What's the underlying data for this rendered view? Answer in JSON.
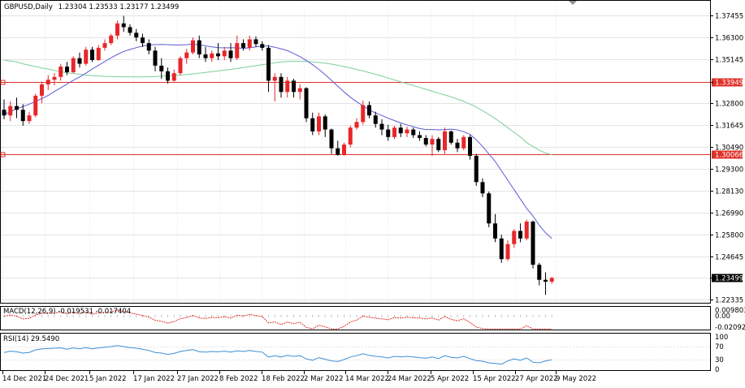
{
  "chart_data": {
    "type": "candlestick",
    "header": {
      "symbol_timeframe": "GBPUSD,Daily",
      "ohlc": "1.23304 1.23533 1.23177 1.23499"
    },
    "x_tick_labels": [
      "14 Dec 2021",
      "24 Dec 2021",
      "5 Jan 2022",
      "17 Jan 2022",
      "27 Jan 2022",
      "8 Feb 2022",
      "18 Feb 2022",
      "2 Mar 2022",
      "14 Mar 2022",
      "24 Mar 2022",
      "5 Apr 2022",
      "15 Apr 2022",
      "27 Apr 2022",
      "9 May 2022"
    ],
    "y_tick_labels": [
      "1.37455",
      "1.36300",
      "1.35145",
      "1.33949",
      "1.32800",
      "1.31645",
      "1.30490",
      "1.29300",
      "1.28130",
      "1.26990",
      "1.25800",
      "1.24645",
      "1.23499",
      "1.22335"
    ],
    "ylim": [
      1.2222,
      1.3795
    ],
    "horizontal_levels": [
      {
        "value": 1.33949,
        "label": "1.33949",
        "color": "#e0302a"
      },
      {
        "value": 1.30066,
        "label": "1.30066",
        "color": "#e0302a"
      }
    ],
    "current_price": {
      "value": 1.23499,
      "label": "1.23499"
    },
    "colors": {
      "bull": "#e8262a",
      "bear": "#000000",
      "ma_fast": "#5b5bd6",
      "ma_slow": "#7ccf98",
      "level": "#e0302a",
      "grid": "#c8c8c8"
    },
    "candles": [
      [
        1.3245,
        1.33,
        1.3195,
        1.3215
      ],
      [
        1.3215,
        1.329,
        1.3185,
        1.3265
      ],
      [
        1.3265,
        1.331,
        1.32,
        1.3245
      ],
      [
        1.3245,
        1.3275,
        1.316,
        1.3185
      ],
      [
        1.3185,
        1.3235,
        1.317,
        1.3215
      ],
      [
        1.3215,
        1.333,
        1.3205,
        1.332
      ],
      [
        1.332,
        1.3395,
        1.328,
        1.338
      ],
      [
        1.338,
        1.343,
        1.335,
        1.3405
      ],
      [
        1.3405,
        1.344,
        1.3375,
        1.342
      ],
      [
        1.342,
        1.349,
        1.34,
        1.3475
      ],
      [
        1.3475,
        1.35,
        1.343,
        1.3445
      ],
      [
        1.3445,
        1.353,
        1.344,
        1.352
      ],
      [
        1.352,
        1.355,
        1.347,
        1.349
      ],
      [
        1.349,
        1.358,
        1.348,
        1.3565
      ],
      [
        1.3565,
        1.358,
        1.35,
        1.351
      ],
      [
        1.351,
        1.359,
        1.3505,
        1.3575
      ],
      [
        1.3575,
        1.362,
        1.356,
        1.36
      ],
      [
        1.36,
        1.365,
        1.359,
        1.364
      ],
      [
        1.364,
        1.372,
        1.362,
        1.3705
      ],
      [
        1.3705,
        1.3745,
        1.366,
        1.3685
      ],
      [
        1.3685,
        1.37,
        1.364,
        1.3655
      ],
      [
        1.3655,
        1.3675,
        1.361,
        1.363
      ],
      [
        1.363,
        1.365,
        1.358,
        1.36
      ],
      [
        1.36,
        1.362,
        1.354,
        1.356
      ],
      [
        1.356,
        1.358,
        1.345,
        1.348
      ],
      [
        1.348,
        1.352,
        1.341,
        1.345
      ],
      [
        1.345,
        1.347,
        1.3385,
        1.34
      ],
      [
        1.34,
        1.346,
        1.3395,
        1.344
      ],
      [
        1.344,
        1.353,
        1.343,
        1.352
      ],
      [
        1.352,
        1.357,
        1.349,
        1.355
      ],
      [
        1.355,
        1.363,
        1.354,
        1.3615
      ],
      [
        1.3615,
        1.364,
        1.352,
        1.354
      ],
      [
        1.354,
        1.358,
        1.35,
        1.352
      ],
      [
        1.352,
        1.356,
        1.35,
        1.3545
      ],
      [
        1.3545,
        1.36,
        1.351,
        1.353
      ],
      [
        1.353,
        1.358,
        1.351,
        1.356
      ],
      [
        1.356,
        1.36,
        1.35,
        1.352
      ],
      [
        1.352,
        1.364,
        1.351,
        1.36
      ],
      [
        1.36,
        1.362,
        1.356,
        1.3575
      ],
      [
        1.3575,
        1.364,
        1.356,
        1.362
      ],
      [
        1.362,
        1.3635,
        1.358,
        1.3595
      ],
      [
        1.3595,
        1.361,
        1.356,
        1.3575
      ],
      [
        1.3575,
        1.359,
        1.334,
        1.34
      ],
      [
        1.34,
        1.344,
        1.329,
        1.342
      ],
      [
        1.342,
        1.344,
        1.331,
        1.334
      ],
      [
        1.334,
        1.342,
        1.331,
        1.34
      ],
      [
        1.34,
        1.341,
        1.331,
        1.334
      ],
      [
        1.334,
        1.338,
        1.33,
        1.336
      ],
      [
        1.336,
        1.3365,
        1.318,
        1.32
      ],
      [
        1.32,
        1.323,
        1.311,
        1.313
      ],
      [
        1.313,
        1.323,
        1.311,
        1.321
      ],
      [
        1.321,
        1.322,
        1.31,
        1.314
      ],
      [
        1.314,
        1.3145,
        1.301,
        1.304
      ],
      [
        1.304,
        1.308,
        1.3,
        1.3005
      ],
      [
        1.3005,
        1.307,
        1.3,
        1.306
      ],
      [
        1.306,
        1.316,
        1.3045,
        1.315
      ],
      [
        1.315,
        1.32,
        1.314,
        1.318
      ],
      [
        1.318,
        1.3295,
        1.3165,
        1.327
      ],
      [
        1.327,
        1.329,
        1.32,
        1.3215
      ],
      [
        1.3215,
        1.3235,
        1.315,
        1.317
      ],
      [
        1.317,
        1.3195,
        1.311,
        1.314
      ],
      [
        1.314,
        1.3165,
        1.308,
        1.31
      ],
      [
        1.31,
        1.316,
        1.309,
        1.315
      ],
      [
        1.315,
        1.317,
        1.31,
        1.312
      ],
      [
        1.312,
        1.3155,
        1.31,
        1.314
      ],
      [
        1.314,
        1.315,
        1.3095,
        1.311
      ],
      [
        1.311,
        1.313,
        1.308,
        1.3095
      ],
      [
        1.3095,
        1.311,
        1.305,
        1.306
      ],
      [
        1.306,
        1.311,
        1.3,
        1.309
      ],
      [
        1.309,
        1.31,
        1.302,
        1.303
      ],
      [
        1.303,
        1.315,
        1.301,
        1.313
      ],
      [
        1.313,
        1.3135,
        1.306,
        1.307
      ],
      [
        1.307,
        1.309,
        1.302,
        1.304
      ],
      [
        1.304,
        1.311,
        1.303,
        1.31
      ],
      [
        1.31,
        1.311,
        1.298,
        1.3
      ],
      [
        1.3,
        1.301,
        1.284,
        1.286
      ],
      [
        1.286,
        1.288,
        1.278,
        1.28
      ],
      [
        1.28,
        1.281,
        1.262,
        1.264
      ],
      [
        1.264,
        1.269,
        1.254,
        1.256
      ],
      [
        1.256,
        1.258,
        1.243,
        1.245
      ],
      [
        1.245,
        1.255,
        1.244,
        1.253
      ],
      [
        1.253,
        1.261,
        1.251,
        1.26
      ],
      [
        1.26,
        1.264,
        1.254,
        1.256
      ],
      [
        1.256,
        1.266,
        1.255,
        1.265
      ],
      [
        1.265,
        1.2655,
        1.24,
        1.242
      ],
      [
        1.242,
        1.243,
        1.231,
        1.234
      ],
      [
        1.234,
        1.238,
        1.226,
        1.233
      ],
      [
        1.233,
        1.2355,
        1.2318,
        1.235
      ]
    ],
    "ma_fast": [
      1.322,
      1.3235,
      1.325,
      1.3262,
      1.3275,
      1.329,
      1.3305,
      1.3322,
      1.3342,
      1.3362,
      1.3382,
      1.3402,
      1.342,
      1.344,
      1.3462,
      1.3482,
      1.3502,
      1.3522,
      1.354,
      1.3556,
      1.3566,
      1.3576,
      1.3584,
      1.359,
      1.3592,
      1.3593,
      1.3592,
      1.359,
      1.359,
      1.3592,
      1.3595,
      1.359,
      1.3586,
      1.358,
      1.3576,
      1.3575,
      1.3575,
      1.3575,
      1.3572,
      1.3575,
      1.358,
      1.3585,
      1.3585,
      1.3578,
      1.357,
      1.356,
      1.3545,
      1.3528,
      1.3508,
      1.3485,
      1.346,
      1.3432,
      1.3402,
      1.337,
      1.334,
      1.3312,
      1.3288,
      1.3266,
      1.3245,
      1.3228,
      1.3215,
      1.32,
      1.3188,
      1.3175,
      1.3165,
      1.3155,
      1.3145,
      1.314,
      1.314,
      1.3138,
      1.314,
      1.3142,
      1.3138,
      1.3128,
      1.3115,
      1.3085,
      1.305,
      1.301,
      1.297,
      1.292,
      1.287,
      1.282,
      1.277,
      1.272,
      1.268,
      1.263,
      1.259,
      1.256
    ],
    "ma_slow": [
      1.351,
      1.3505,
      1.35,
      1.349,
      1.3482,
      1.3475,
      1.3468,
      1.3462,
      1.3455,
      1.3448,
      1.3442,
      1.3438,
      1.3434,
      1.343,
      1.3427,
      1.3425,
      1.3423,
      1.3422,
      1.3421,
      1.342,
      1.342,
      1.342,
      1.342,
      1.3421,
      1.3422,
      1.3424,
      1.3426,
      1.3428,
      1.343,
      1.3433,
      1.3436,
      1.344,
      1.3444,
      1.3448,
      1.3452,
      1.3456,
      1.346,
      1.3465,
      1.347,
      1.3475,
      1.348,
      1.3485,
      1.349,
      1.3495,
      1.35,
      1.3502,
      1.3503,
      1.3503,
      1.3502,
      1.35,
      1.3497,
      1.3493,
      1.3488,
      1.3482,
      1.3475,
      1.3468,
      1.346,
      1.3452,
      1.3443,
      1.3434,
      1.3424,
      1.3414,
      1.3404,
      1.3394,
      1.3384,
      1.3374,
      1.3364,
      1.3354,
      1.3344,
      1.3334,
      1.3324,
      1.3314,
      1.3302,
      1.329,
      1.3275,
      1.326,
      1.324,
      1.322,
      1.3198,
      1.3175,
      1.315,
      1.3125,
      1.31,
      1.307,
      1.305,
      1.303,
      1.3015,
      1.3005
    ],
    "macd_panel": {
      "label": "MACD(12,26,9) -0.019531 -0.017404",
      "y_tick_labels": [
        "0.009803",
        "0.00",
        "-0.020928"
      ],
      "ylim": [
        -0.024,
        0.0105
      ]
    },
    "rsi_panel": {
      "label": "RSI(14) 29.5490",
      "y_tick_labels": [
        "100",
        "70",
        "30",
        "0"
      ],
      "ylim": [
        0,
        100
      ],
      "levels": [
        70,
        30
      ],
      "values": [
        52,
        56,
        54,
        50,
        52,
        60,
        63,
        64,
        65,
        66,
        62,
        66,
        63,
        67,
        63,
        66,
        68,
        70,
        73,
        70,
        67,
        65,
        62,
        58,
        52,
        50,
        46,
        49,
        55,
        58,
        61,
        54,
        53,
        55,
        54,
        56,
        53,
        57,
        55,
        58,
        55,
        53,
        38,
        42,
        38,
        43,
        40,
        42,
        32,
        28,
        36,
        31,
        26,
        24,
        30,
        38,
        42,
        48,
        43,
        40,
        38,
        35,
        40,
        38,
        40,
        38,
        36,
        34,
        38,
        33,
        42,
        37,
        35,
        40,
        33,
        27,
        25,
        20,
        18,
        16,
        26,
        32,
        28,
        35,
        22,
        20,
        26,
        29.5
      ]
    }
  }
}
